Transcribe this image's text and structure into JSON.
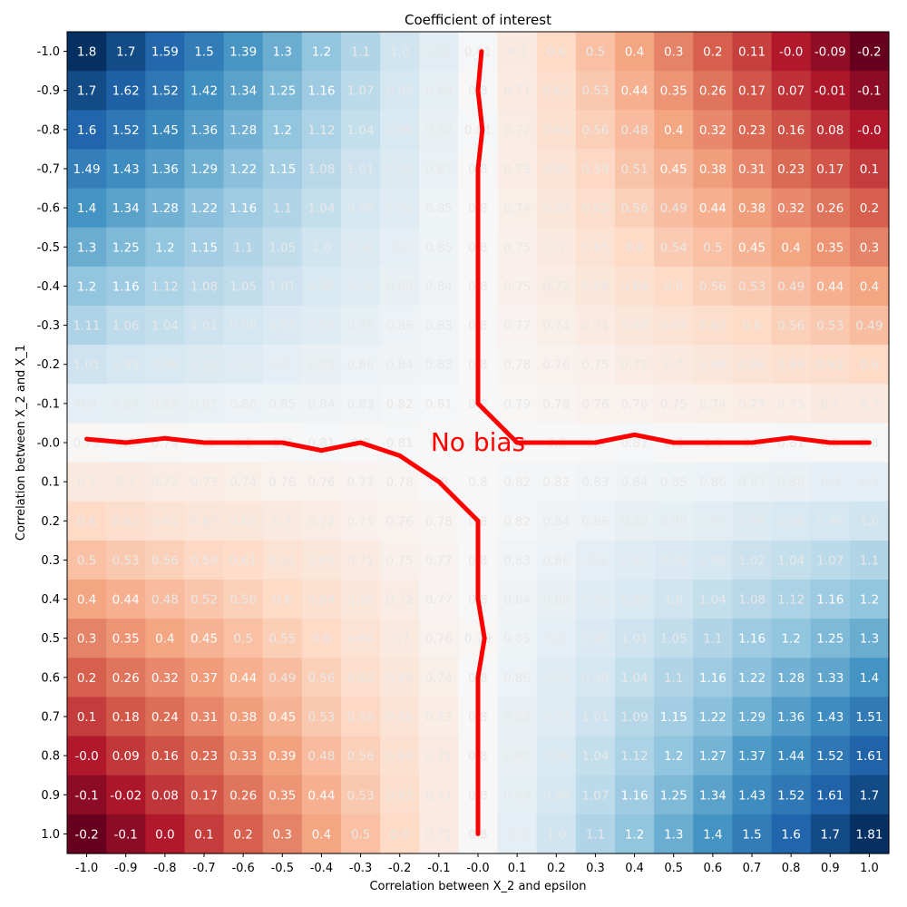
{
  "chart_data": {
    "type": "heatmap",
    "title": "Coefficient of interest",
    "xlabel": "Correlation between X_2 and epsilon",
    "ylabel": "Correlation between X_2 and X_1",
    "x_tick_labels": [
      "-1.0",
      "-0.9",
      "-0.8",
      "-0.7",
      "-0.6",
      "-0.5",
      "-0.4",
      "-0.3",
      "-0.2",
      "-0.1",
      "-0.0",
      "0.1",
      "0.2",
      "0.3",
      "0.4",
      "0.5",
      "0.6",
      "0.7",
      "0.8",
      "0.9",
      "1.0"
    ],
    "y_tick_labels": [
      "-1.0",
      "-0.9",
      "-0.8",
      "-0.7",
      "-0.6",
      "-0.5",
      "-0.4",
      "-0.3",
      "-0.2",
      "-0.1",
      "-0.0",
      "0.1",
      "0.2",
      "0.3",
      "0.4",
      "0.5",
      "0.6",
      "0.7",
      "0.8",
      "0.9",
      "1.0"
    ],
    "cell_labels": [
      [
        "1.8",
        "1.7",
        "1.59",
        "1.5",
        "1.39",
        "1.3",
        "1.2",
        "1.1",
        "1.0",
        "0.91",
        "0.81",
        "0.7",
        "0.6",
        "0.5",
        "0.4",
        "0.3",
        "0.2",
        "0.11",
        "-0.0",
        "-0.09",
        "-0.2"
      ],
      [
        "1.7",
        "1.62",
        "1.52",
        "1.42",
        "1.34",
        "1.25",
        "1.16",
        "1.07",
        "0.98",
        "0.89",
        "0.8",
        "0.71",
        "0.62",
        "0.53",
        "0.44",
        "0.35",
        "0.26",
        "0.17",
        "0.07",
        "-0.01",
        "-0.1"
      ],
      [
        "1.6",
        "1.52",
        "1.45",
        "1.36",
        "1.28",
        "1.2",
        "1.12",
        "1.04",
        "0.96",
        "0.88",
        "0.81",
        "0.72",
        "0.64",
        "0.56",
        "0.48",
        "0.4",
        "0.32",
        "0.23",
        "0.16",
        "0.08",
        "-0.0"
      ],
      [
        "1.49",
        "1.43",
        "1.36",
        "1.29",
        "1.22",
        "1.15",
        "1.08",
        "1.01",
        "0.94",
        "0.87",
        "0.8",
        "0.73",
        "0.66",
        "0.59",
        "0.51",
        "0.45",
        "0.38",
        "0.31",
        "0.23",
        "0.17",
        "0.1"
      ],
      [
        "1.4",
        "1.34",
        "1.28",
        "1.22",
        "1.16",
        "1.1",
        "1.04",
        "0.98",
        "0.92",
        "0.85",
        "0.8",
        "0.74",
        "0.68",
        "0.62",
        "0.56",
        "0.49",
        "0.44",
        "0.38",
        "0.32",
        "0.26",
        "0.2"
      ],
      [
        "1.3",
        "1.25",
        "1.2",
        "1.15",
        "1.1",
        "1.05",
        "1.0",
        "0.94",
        "0.9",
        "0.85",
        "0.8",
        "0.75",
        "0.7",
        "0.65",
        "0.6",
        "0.54",
        "0.5",
        "0.45",
        "0.4",
        "0.35",
        "0.3"
      ],
      [
        "1.2",
        "1.16",
        "1.12",
        "1.08",
        "1.05",
        "1.01",
        "0.96",
        "0.92",
        "0.88",
        "0.84",
        "0.8",
        "0.75",
        "0.72",
        "0.68",
        "0.64",
        "0.6",
        "0.56",
        "0.53",
        "0.49",
        "0.44",
        "0.4"
      ],
      [
        "1.11",
        "1.06",
        "1.04",
        "1.01",
        "0.98",
        "0.95",
        "0.92",
        "0.89",
        "0.86",
        "0.83",
        "0.8",
        "0.77",
        "0.74",
        "0.71",
        "0.68",
        "0.65",
        "0.62",
        "0.6",
        "0.56",
        "0.53",
        "0.49"
      ],
      [
        "1.01",
        "0.98",
        "0.96",
        "0.94",
        "0.92",
        "0.9",
        "0.88",
        "0.86",
        "0.84",
        "0.83",
        "0.8",
        "0.78",
        "0.76",
        "0.75",
        "0.72",
        "0.7",
        "0.68",
        "0.66",
        "0.64",
        "0.62",
        "0.6"
      ],
      [
        "0.9",
        "0.89",
        "0.88",
        "0.87",
        "0.86",
        "0.85",
        "0.84",
        "0.83",
        "0.82",
        "0.81",
        "0.8",
        "0.79",
        "0.78",
        "0.76",
        "0.76",
        "0.75",
        "0.74",
        "0.73",
        "0.73",
        "0.7",
        "0.7"
      ],
      [
        "0.79",
        "0.8",
        "0.79",
        "0.8",
        "0.8",
        "0.8",
        "0.81",
        "0.8",
        "0.81",
        "0.8",
        "0.8",
        "0.8",
        "0.8",
        "0.8",
        "0.81",
        "0.8",
        "0.8",
        "0.8",
        "0.81",
        "0.8",
        "0.8"
      ],
      [
        "0.7",
        "0.7",
        "0.72",
        "0.73",
        "0.74",
        "0.76",
        "0.76",
        "0.77",
        "0.78",
        "0.8",
        "0.8",
        "0.82",
        "0.82",
        "0.83",
        "0.84",
        "0.85",
        "0.86",
        "0.87",
        "0.88",
        "0.9",
        "0.9"
      ],
      [
        "0.6",
        "0.62",
        "0.65",
        "0.67",
        "0.68",
        "0.7",
        "0.72",
        "0.75",
        "0.76",
        "0.78",
        "0.8",
        "0.82",
        "0.84",
        "0.86",
        "0.88",
        "0.89",
        "0.91",
        "0.94",
        "0.96",
        "0.98",
        "1.0"
      ],
      [
        "0.5",
        "0.53",
        "0.56",
        "0.59",
        "0.61",
        "0.65",
        "0.68",
        "0.71",
        "0.75",
        "0.77",
        "0.8",
        "0.83",
        "0.86",
        "0.9",
        "0.92",
        "0.95",
        "0.98",
        "1.02",
        "1.04",
        "1.07",
        "1.1"
      ],
      [
        "0.4",
        "0.44",
        "0.48",
        "0.52",
        "0.56",
        "0.6",
        "0.64",
        "0.68",
        "0.72",
        "0.77",
        "0.8",
        "0.84",
        "0.88",
        "0.92",
        "0.96",
        "1.0",
        "1.04",
        "1.08",
        "1.12",
        "1.16",
        "1.2"
      ],
      [
        "0.3",
        "0.35",
        "0.4",
        "0.45",
        "0.5",
        "0.55",
        "0.6",
        "0.65",
        "0.7",
        "0.76",
        "0.79",
        "0.85",
        "0.9",
        "0.95",
        "1.01",
        "1.05",
        "1.1",
        "1.16",
        "1.2",
        "1.25",
        "1.3"
      ],
      [
        "0.2",
        "0.26",
        "0.32",
        "0.37",
        "0.44",
        "0.49",
        "0.56",
        "0.62",
        "0.68",
        "0.74",
        "0.8",
        "0.86",
        "0.92",
        "0.98",
        "1.04",
        "1.1",
        "1.16",
        "1.22",
        "1.28",
        "1.33",
        "1.4"
      ],
      [
        "0.1",
        "0.18",
        "0.24",
        "0.31",
        "0.38",
        "0.45",
        "0.53",
        "0.59",
        "0.66",
        "0.73",
        "0.8",
        "0.88",
        "0.93",
        "1.01",
        "1.09",
        "1.15",
        "1.22",
        "1.29",
        "1.36",
        "1.43",
        "1.51"
      ],
      [
        "-0.0",
        "0.09",
        "0.16",
        "0.23",
        "0.33",
        "0.39",
        "0.48",
        "0.56",
        "0.64",
        "0.71",
        "0.8",
        "0.88",
        "0.96",
        "1.04",
        "1.12",
        "1.2",
        "1.27",
        "1.37",
        "1.44",
        "1.52",
        "1.61"
      ],
      [
        "-0.1",
        "-0.02",
        "0.08",
        "0.17",
        "0.26",
        "0.35",
        "0.44",
        "0.53",
        "0.62",
        "0.71",
        "0.8",
        "0.89",
        "0.98",
        "1.07",
        "1.16",
        "1.25",
        "1.34",
        "1.43",
        "1.52",
        "1.61",
        "1.7"
      ],
      [
        "-0.2",
        "-0.1",
        "0.0",
        "0.1",
        "0.2",
        "0.3",
        "0.4",
        "0.5",
        "0.6",
        "0.71",
        "0.8",
        "0.9",
        "1.0",
        "1.1",
        "1.2",
        "1.3",
        "1.4",
        "1.5",
        "1.6",
        "1.7",
        "1.81"
      ]
    ],
    "colormap": "RdBu",
    "color_range": [
      -0.2,
      1.8
    ],
    "grid": false,
    "annotation": "No bias",
    "contour_level": 0.8,
    "contour_color": "#ff0000"
  }
}
